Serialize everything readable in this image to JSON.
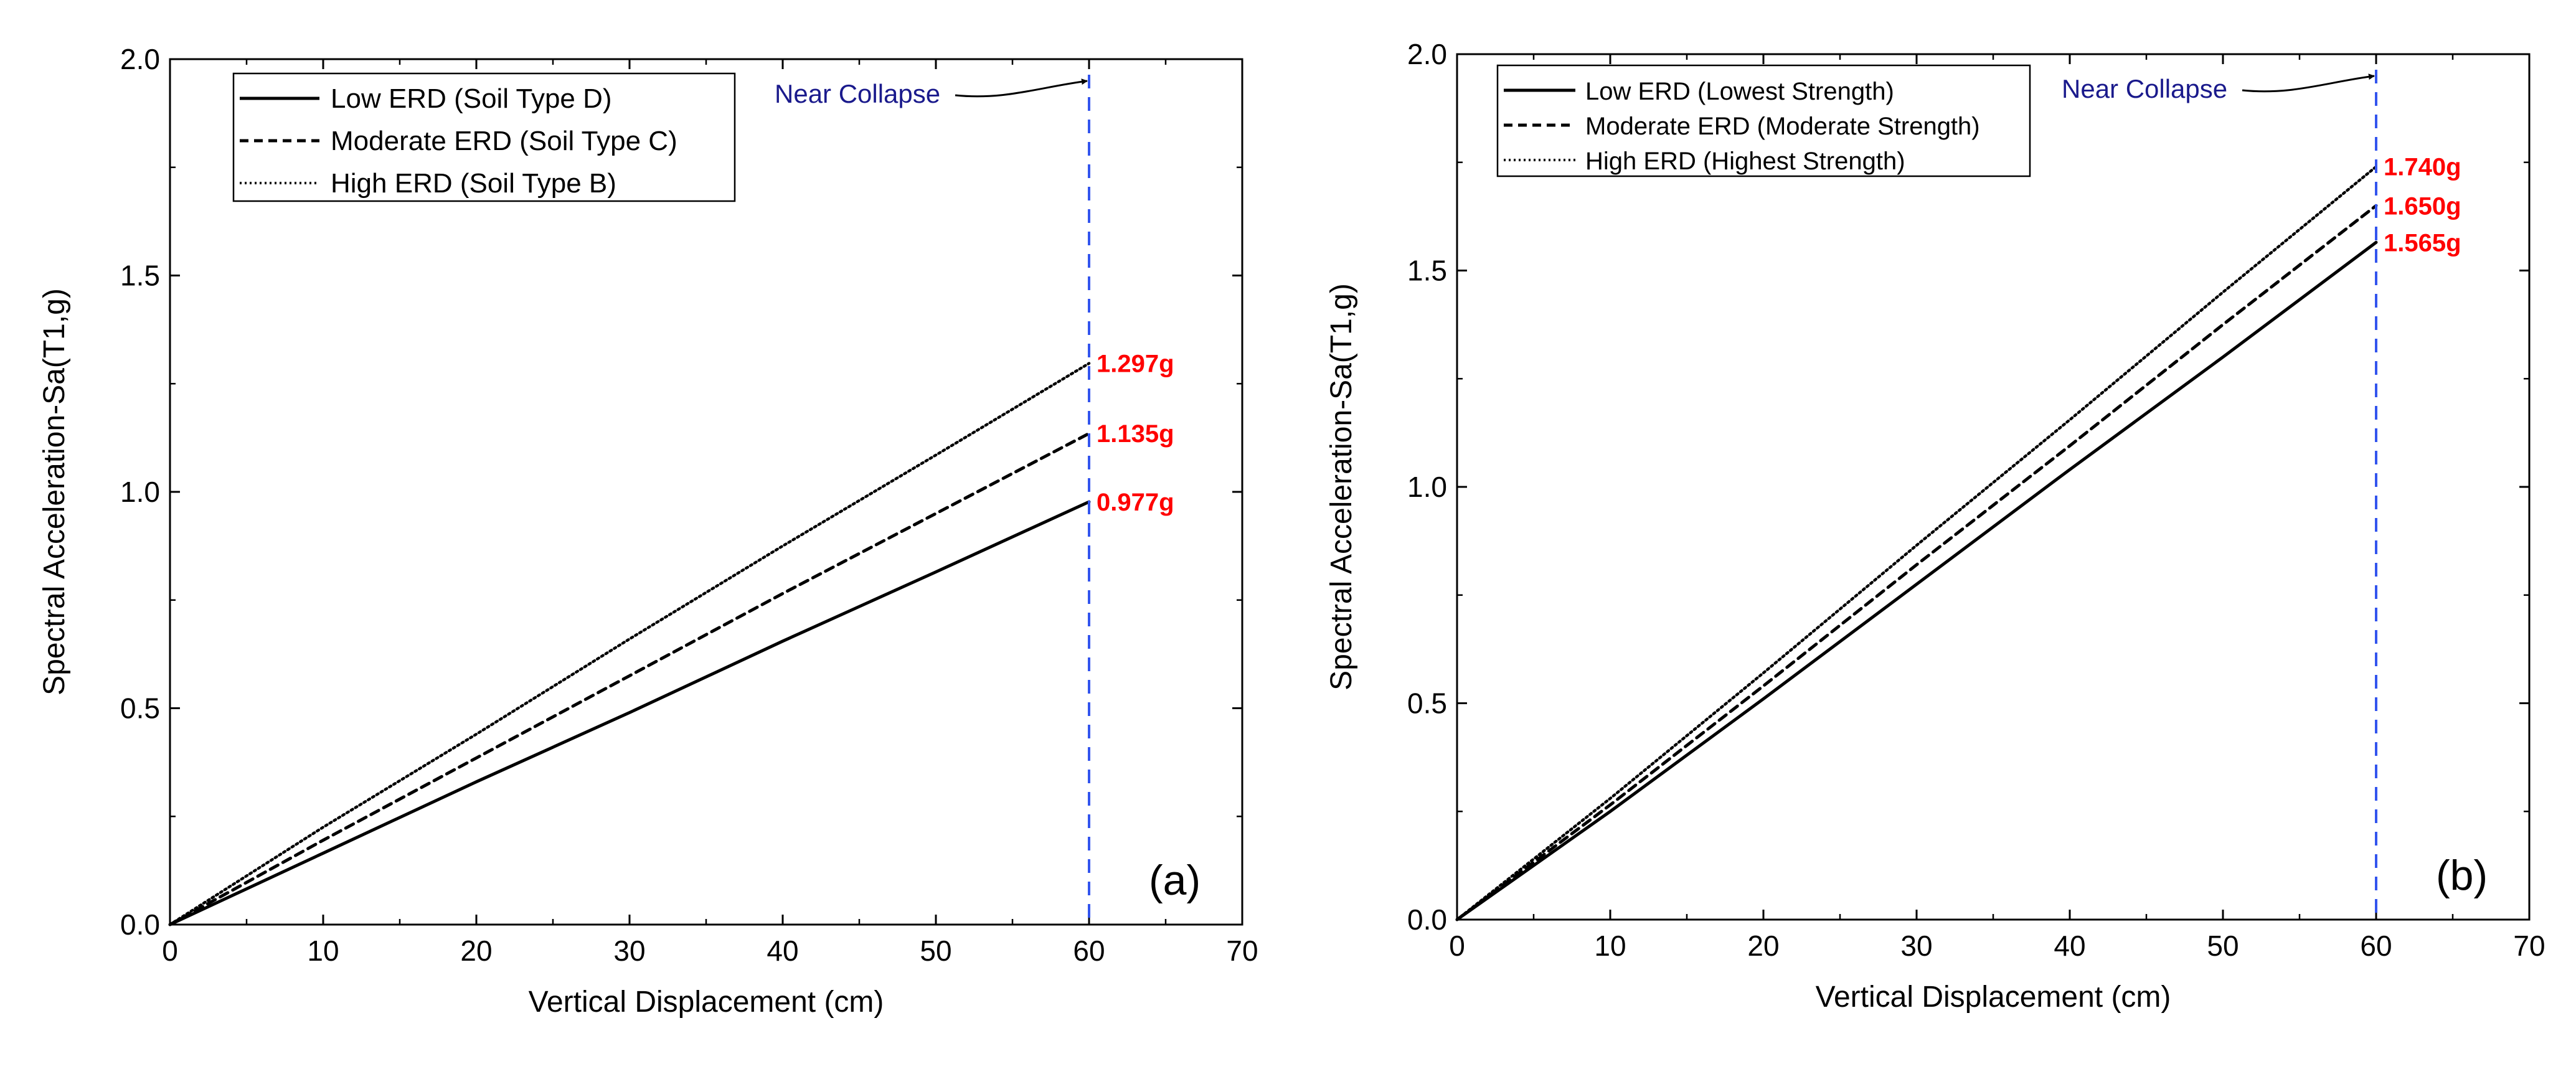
{
  "figure": {
    "panels": [
      {
        "id": "a",
        "panel_label": "(a)",
        "annotation": "Near Collapse",
        "end_labels": [
          "1.297g",
          "1.135g",
          "0.977g"
        ]
      },
      {
        "id": "b",
        "panel_label": "(b)",
        "annotation": "Near Collapse",
        "end_labels": [
          "1.740g",
          "1.650g",
          "1.565g"
        ]
      }
    ]
  },
  "chart_data": [
    {
      "type": "line",
      "title": "",
      "panel_label": "(a)",
      "xlabel": "Vertical Displacement (cm)",
      "ylabel": "Spectral Acceleration-Sa(T1,g)",
      "xlim": [
        0,
        70
      ],
      "ylim": [
        0,
        2.0
      ],
      "xticks": [
        0,
        10,
        20,
        30,
        40,
        50,
        60,
        70
      ],
      "yticks": [
        "0.0",
        "0.5",
        "1.0",
        "1.5",
        "2.0"
      ],
      "grid": false,
      "legend_position": "top-left",
      "series": [
        {
          "name": "Low ERD (Soil Type D)",
          "style": "solid",
          "x": [
            0,
            10,
            20,
            30,
            40,
            50,
            60
          ],
          "y": [
            0,
            0.165,
            0.33,
            0.49,
            0.655,
            0.815,
            0.977
          ]
        },
        {
          "name": "Moderate ERD (Soil Type C)",
          "style": "dashed",
          "x": [
            0,
            10,
            20,
            30,
            40,
            50,
            60
          ],
          "y": [
            0,
            0.195,
            0.385,
            0.575,
            0.765,
            0.95,
            1.135
          ]
        },
        {
          "name": "High ERD (Soil Type B)",
          "style": "dotted",
          "x": [
            0,
            10,
            20,
            30,
            40,
            50,
            60
          ],
          "y": [
            0,
            0.225,
            0.44,
            0.66,
            0.875,
            1.085,
            1.297
          ]
        }
      ],
      "reference_line": {
        "x": 60,
        "label": "Near Collapse",
        "color": "#3355ee"
      },
      "annotations": [
        {
          "text": "1.297g",
          "x": 60,
          "y": 1.297,
          "color": "#ff0000"
        },
        {
          "text": "1.135g",
          "x": 60,
          "y": 1.135,
          "color": "#ff0000"
        },
        {
          "text": "0.977g",
          "x": 60,
          "y": 0.977,
          "color": "#ff0000"
        }
      ]
    },
    {
      "type": "line",
      "title": "",
      "panel_label": "(b)",
      "xlabel": "Vertical Displacement (cm)",
      "ylabel": "Spectral Acceleration-Sa(T1,g)",
      "xlim": [
        0,
        70
      ],
      "ylim": [
        0,
        2.0
      ],
      "xticks": [
        0,
        10,
        20,
        30,
        40,
        50,
        60,
        70
      ],
      "yticks": [
        "0.0",
        "0.5",
        "1.0",
        "1.5",
        "2.0"
      ],
      "grid": false,
      "legend_position": "top-left",
      "series": [
        {
          "name": "Low ERD (Lowest Strength)",
          "style": "solid",
          "x": [
            0,
            10,
            20,
            30,
            40,
            50,
            60
          ],
          "y": [
            0,
            0.25,
            0.51,
            0.775,
            1.04,
            1.3,
            1.565
          ]
        },
        {
          "name": "Moderate ERD (Moderate Strength)",
          "style": "dashed",
          "x": [
            0,
            10,
            20,
            30,
            40,
            50,
            60
          ],
          "y": [
            0,
            0.265,
            0.54,
            0.82,
            1.095,
            1.375,
            1.65
          ]
        },
        {
          "name": "High ERD (Highest Strength)",
          "style": "dotted",
          "x": [
            0,
            10,
            20,
            30,
            40,
            50,
            60
          ],
          "y": [
            0,
            0.28,
            0.57,
            0.865,
            1.155,
            1.45,
            1.74
          ]
        }
      ],
      "reference_line": {
        "x": 60,
        "label": "Near Collapse",
        "color": "#3355ee"
      },
      "annotations": [
        {
          "text": "1.740g",
          "x": 60,
          "y": 1.74,
          "color": "#ff0000"
        },
        {
          "text": "1.650g",
          "x": 60,
          "y": 1.65,
          "color": "#ff0000"
        },
        {
          "text": "1.565g",
          "x": 60,
          "y": 1.565,
          "color": "#ff0000"
        }
      ]
    }
  ]
}
